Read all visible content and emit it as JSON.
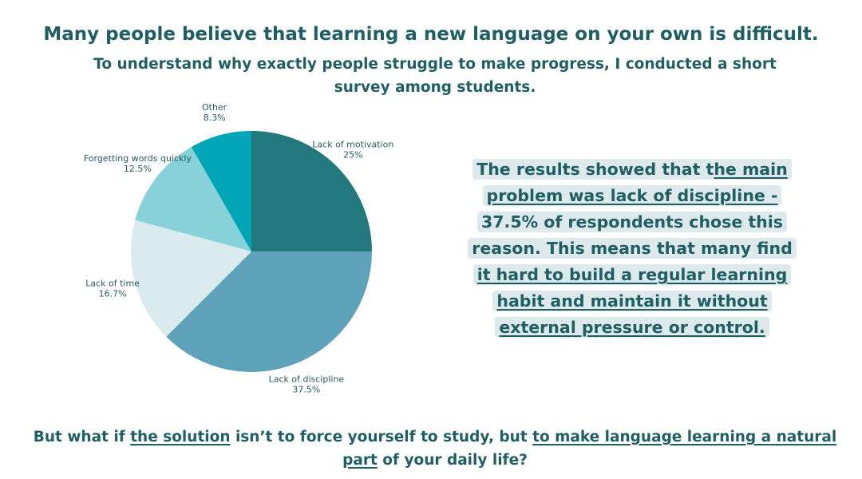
{
  "header": {
    "title": "Many people believe that learning a new language on your own is difficult.",
    "subtitle": "To understand why exactly people struggle to make progress, I conducted a short survey among students."
  },
  "chart_data": {
    "type": "pie",
    "slices": [
      {
        "label": "Lack of motivation",
        "value": 25,
        "value_label": "25%",
        "color": "#23787d"
      },
      {
        "label": "Lack of discipline",
        "value": 37.5,
        "value_label": "37.5%",
        "color": "#5fa3bb"
      },
      {
        "label": "Lack of time",
        "value": 16.7,
        "value_label": "16.7%",
        "color": "#d9ebef"
      },
      {
        "label": "Forgetting words quickly",
        "value": 12.5,
        "value_label": "12.5%",
        "color": "#86d2d8"
      },
      {
        "label": "Other",
        "value": 8.3,
        "value_label": "8.3%",
        "color": "#00a5b6"
      }
    ],
    "legend": "none"
  },
  "callout": {
    "seg1": "The results showed that t",
    "seg2": "he main problem was lack of discipline -",
    "seg3": " 37.5% of respondents chose this reason. This means that many find ",
    "seg4": "it hard to build a regular learning habit and maintain it without external pressure or control."
  },
  "footer": {
    "seg1": "But what if ",
    "seg2": "the solution",
    "seg3": " isn’t to force yourself to study, but ",
    "seg4": "to make language learning a natural part",
    "seg5": " of your daily life?"
  }
}
